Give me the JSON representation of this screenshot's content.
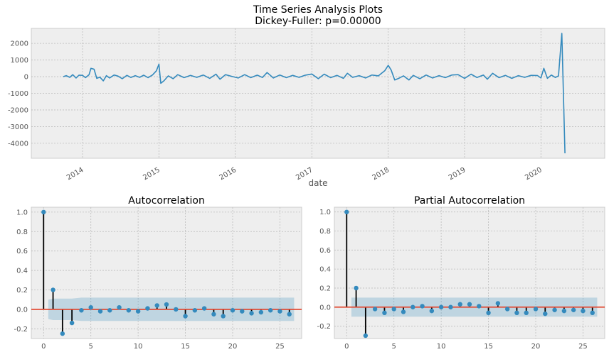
{
  "colors": {
    "panel_bg": "#EEEEEE",
    "grid": "#BCBCBC",
    "series": "#348ABD",
    "zero_line": "#E24A33",
    "stem": "#000000",
    "conf_band": "#348ABD"
  },
  "chart_data": [
    {
      "type": "line",
      "title": "Time Series Analysis Plots",
      "subtitle": "Dickey-Fuller: p=0.00000",
      "xlabel": "date",
      "ylabel": "",
      "x_tick_labels": [
        "2014",
        "2015",
        "2016",
        "2017",
        "2018",
        "2019",
        "2020"
      ],
      "y_ticks": [
        2000,
        1000,
        0,
        -1000,
        -2000,
        -3000,
        -4000
      ],
      "ylim": [
        -4900,
        2900
      ],
      "xlim": [
        "2013-05",
        "2020-11"
      ],
      "grid": true,
      "series_points": [
        [
          "2013-10-01",
          0
        ],
        [
          "2013-10-15",
          60
        ],
        [
          "2013-11-01",
          -40
        ],
        [
          "2013-11-15",
          120
        ],
        [
          "2013-12-01",
          -80
        ],
        [
          "2013-12-15",
          90
        ],
        [
          "2014-01-01",
          80
        ],
        [
          "2014-01-15",
          -60
        ],
        [
          "2014-02-01",
          120
        ],
        [
          "2014-02-10",
          500
        ],
        [
          "2014-02-25",
          450
        ],
        [
          "2014-03-10",
          -100
        ],
        [
          "2014-03-25",
          -30
        ],
        [
          "2014-04-10",
          -250
        ],
        [
          "2014-04-25",
          60
        ],
        [
          "2014-05-10",
          -80
        ],
        [
          "2014-06-01",
          100
        ],
        [
          "2014-06-20",
          30
        ],
        [
          "2014-07-10",
          -120
        ],
        [
          "2014-08-01",
          80
        ],
        [
          "2014-08-20",
          -50
        ],
        [
          "2014-09-10",
          60
        ],
        [
          "2014-10-01",
          -40
        ],
        [
          "2014-10-20",
          90
        ],
        [
          "2014-11-10",
          -60
        ],
        [
          "2014-12-01",
          100
        ],
        [
          "2014-12-20",
          350
        ],
        [
          "2015-01-01",
          750
        ],
        [
          "2015-01-10",
          -400
        ],
        [
          "2015-01-25",
          -250
        ],
        [
          "2015-02-15",
          50
        ],
        [
          "2015-03-10",
          -120
        ],
        [
          "2015-04-01",
          120
        ],
        [
          "2015-05-01",
          -60
        ],
        [
          "2015-06-01",
          80
        ],
        [
          "2015-07-01",
          -40
        ],
        [
          "2015-08-01",
          100
        ],
        [
          "2015-09-01",
          -100
        ],
        [
          "2015-10-01",
          150
        ],
        [
          "2015-10-20",
          -150
        ],
        [
          "2015-11-15",
          120
        ],
        [
          "2015-12-15",
          20
        ],
        [
          "2016-01-15",
          -80
        ],
        [
          "2016-02-15",
          120
        ],
        [
          "2016-03-15",
          -60
        ],
        [
          "2016-04-15",
          90
        ],
        [
          "2016-05-10",
          -50
        ],
        [
          "2016-06-01",
          250
        ],
        [
          "2016-07-01",
          -80
        ],
        [
          "2016-08-01",
          100
        ],
        [
          "2016-09-01",
          -60
        ],
        [
          "2016-10-01",
          80
        ],
        [
          "2016-11-01",
          -40
        ],
        [
          "2016-12-01",
          90
        ],
        [
          "2017-01-01",
          160
        ],
        [
          "2017-02-01",
          -120
        ],
        [
          "2017-03-01",
          150
        ],
        [
          "2017-04-01",
          -60
        ],
        [
          "2017-05-01",
          80
        ],
        [
          "2017-06-01",
          -100
        ],
        [
          "2017-06-20",
          200
        ],
        [
          "2017-07-15",
          -40
        ],
        [
          "2017-08-15",
          60
        ],
        [
          "2017-09-15",
          -80
        ],
        [
          "2017-10-15",
          100
        ],
        [
          "2017-11-15",
          50
        ],
        [
          "2017-12-15",
          350
        ],
        [
          "2018-01-01",
          680
        ],
        [
          "2018-01-15",
          400
        ],
        [
          "2018-02-01",
          -200
        ],
        [
          "2018-02-20",
          -100
        ],
        [
          "2018-03-15",
          50
        ],
        [
          "2018-04-10",
          -200
        ],
        [
          "2018-05-01",
          80
        ],
        [
          "2018-06-01",
          -120
        ],
        [
          "2018-07-01",
          100
        ],
        [
          "2018-08-01",
          -80
        ],
        [
          "2018-09-01",
          60
        ],
        [
          "2018-10-01",
          -60
        ],
        [
          "2018-11-01",
          100
        ],
        [
          "2018-12-01",
          120
        ],
        [
          "2019-01-01",
          -100
        ],
        [
          "2019-02-01",
          150
        ],
        [
          "2019-03-01",
          -50
        ],
        [
          "2019-04-01",
          100
        ],
        [
          "2019-04-20",
          -150
        ],
        [
          "2019-05-15",
          200
        ],
        [
          "2019-06-15",
          -60
        ],
        [
          "2019-07-15",
          80
        ],
        [
          "2019-08-15",
          -100
        ],
        [
          "2019-09-15",
          60
        ],
        [
          "2019-10-15",
          -40
        ],
        [
          "2019-11-15",
          80
        ],
        [
          "2019-12-15",
          70
        ],
        [
          "2020-01-01",
          -80
        ],
        [
          "2020-01-15",
          500
        ],
        [
          "2020-02-01",
          -100
        ],
        [
          "2020-02-20",
          100
        ],
        [
          "2020-03-10",
          -50
        ],
        [
          "2020-03-25",
          50
        ],
        [
          "2020-04-10",
          2600
        ],
        [
          "2020-04-25",
          -4600
        ]
      ]
    },
    {
      "type": "stem",
      "title": "Autocorrelation",
      "x_ticks": [
        0,
        5,
        10,
        15,
        20,
        25
      ],
      "y_ticks": [
        1.0,
        0.8,
        0.6,
        0.4,
        0.2,
        0.0,
        -0.2
      ],
      "xlim": [
        -1.3,
        27.3
      ],
      "ylim": [
        -0.3,
        1.05
      ],
      "lags": [
        0,
        1,
        2,
        3,
        4,
        5,
        6,
        7,
        8,
        9,
        10,
        11,
        12,
        13,
        14,
        15,
        16,
        17,
        18,
        19,
        20,
        21,
        22,
        23,
        24,
        25,
        26
      ],
      "values": [
        1.0,
        0.2,
        -0.25,
        -0.14,
        -0.01,
        0.02,
        -0.02,
        -0.01,
        0.02,
        -0.01,
        -0.02,
        0.01,
        0.04,
        0.05,
        0.0,
        -0.07,
        -0.01,
        0.01,
        -0.05,
        -0.07,
        -0.01,
        -0.02,
        -0.04,
        -0.03,
        -0.01,
        -0.02,
        -0.05
      ],
      "confidence_band": [
        0.1,
        0.11,
        0.11,
        0.11,
        0.12,
        0.12,
        0.12,
        0.12,
        0.12,
        0.12,
        0.12,
        0.12,
        0.12,
        0.12,
        0.12,
        0.12,
        0.12,
        0.12,
        0.12,
        0.12,
        0.12,
        0.12,
        0.12,
        0.12,
        0.12,
        0.12,
        0.12
      ],
      "grid": true
    },
    {
      "type": "stem",
      "title": "Partial Autocorrelation",
      "x_ticks": [
        0,
        5,
        10,
        15,
        20,
        25
      ],
      "y_ticks": [
        1.0,
        0.8,
        0.6,
        0.4,
        0.2,
        0.0,
        -0.2
      ],
      "xlim": [
        -1.3,
        27.3
      ],
      "ylim": [
        -0.33,
        1.05
      ],
      "lags": [
        0,
        1,
        2,
        3,
        4,
        5,
        6,
        7,
        8,
        9,
        10,
        11,
        12,
        13,
        14,
        15,
        16,
        17,
        18,
        19,
        20,
        21,
        22,
        23,
        24,
        25,
        26
      ],
      "values": [
        1.0,
        0.2,
        -0.3,
        -0.02,
        -0.06,
        -0.02,
        -0.05,
        0.0,
        0.01,
        -0.04,
        0.0,
        0.0,
        0.03,
        0.03,
        0.01,
        -0.06,
        0.04,
        -0.02,
        -0.06,
        -0.06,
        -0.02,
        -0.07,
        -0.03,
        -0.04,
        -0.03,
        -0.04,
        -0.06
      ],
      "confidence_band": [
        0.1,
        0.1,
        0.1,
        0.1,
        0.1,
        0.1,
        0.1,
        0.1,
        0.1,
        0.1,
        0.1,
        0.1,
        0.1,
        0.1,
        0.1,
        0.1,
        0.1,
        0.1,
        0.1,
        0.1,
        0.1,
        0.1,
        0.1,
        0.1,
        0.1,
        0.1,
        0.1
      ],
      "grid": true
    }
  ]
}
